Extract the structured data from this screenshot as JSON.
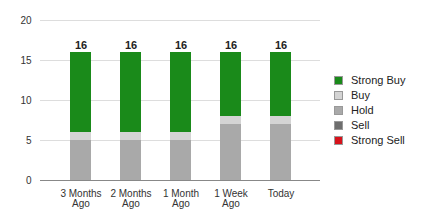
{
  "chart_data": {
    "type": "bar",
    "stacked": true,
    "categories": [
      "3 Months Ago",
      "2 Months Ago",
      "1 Month Ago",
      "1 Week Ago",
      "Today"
    ],
    "series": [
      {
        "name": "Strong Buy",
        "color": "#1a8a1a",
        "values": [
          10,
          10,
          10,
          8,
          8
        ]
      },
      {
        "name": "Buy",
        "color": "#d4d4d4",
        "values": [
          1,
          1,
          1,
          1,
          1
        ]
      },
      {
        "name": "Hold",
        "color": "#a9a9a9",
        "values": [
          5,
          5,
          5,
          7,
          7
        ]
      },
      {
        "name": "Sell",
        "color": "#6e6e6e",
        "values": [
          0,
          0,
          0,
          0,
          0
        ]
      },
      {
        "name": "Strong Sell",
        "color": "#d7121b",
        "values": [
          0,
          0,
          0,
          0,
          0
        ]
      }
    ],
    "totals": [
      16,
      16,
      16,
      16,
      16
    ],
    "ylim": [
      0,
      20
    ],
    "yticks": [
      0,
      5,
      10,
      15,
      20
    ],
    "grid": true,
    "legend": "right"
  }
}
